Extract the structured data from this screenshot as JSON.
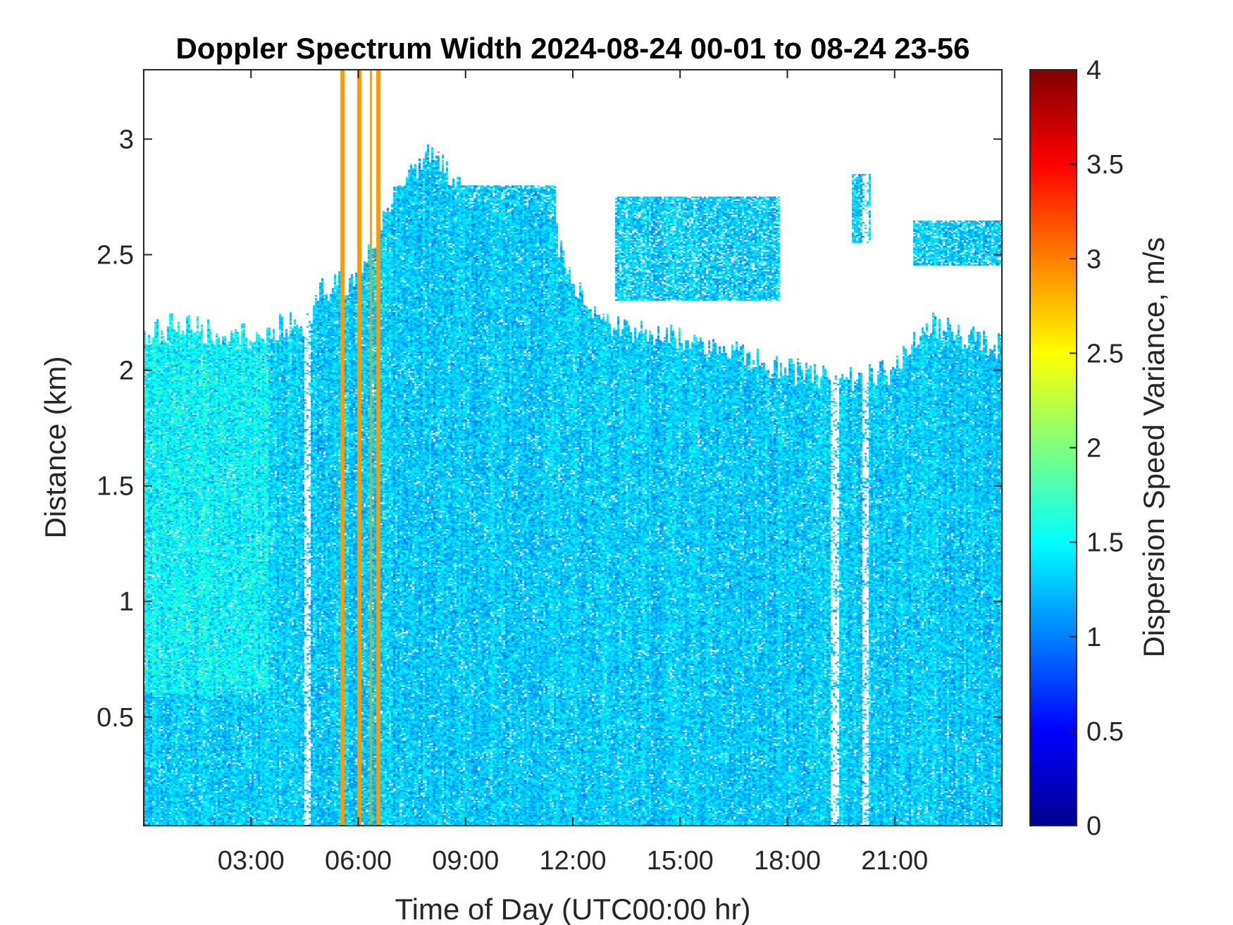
{
  "chart_data": {
    "type": "heatmap",
    "title": "Doppler Spectrum Width 2024-08-24 00-01 to 08-24 23-56",
    "xlabel": "Time of Day (UTC00:00 hr)",
    "ylabel": "Distance (km)",
    "colorbar_label": "Dispersion Speed Variance, m/s",
    "colormap": "jet",
    "x_unit": "hours",
    "xlim": [
      0.0,
      24.0
    ],
    "ylim": [
      0.03,
      3.3
    ],
    "clim": [
      0,
      4
    ],
    "xticks": [
      {
        "value": 3,
        "label": "03:00"
      },
      {
        "value": 6,
        "label": "06:00"
      },
      {
        "value": 9,
        "label": "09:00"
      },
      {
        "value": 12,
        "label": "12:00"
      },
      {
        "value": 15,
        "label": "15:00"
      },
      {
        "value": 18,
        "label": "18:00"
      },
      {
        "value": 21,
        "label": "21:00"
      }
    ],
    "yticks": [
      {
        "value": 0.5,
        "label": "0.5"
      },
      {
        "value": 1,
        "label": "1"
      },
      {
        "value": 1.5,
        "label": "1.5"
      },
      {
        "value": 2,
        "label": "2"
      },
      {
        "value": 2.5,
        "label": "2.5"
      },
      {
        "value": 3,
        "label": "3"
      }
    ],
    "cticks": [
      {
        "value": 0,
        "label": "0"
      },
      {
        "value": 0.5,
        "label": "0.5"
      },
      {
        "value": 1,
        "label": "1"
      },
      {
        "value": 1.5,
        "label": "1.5"
      },
      {
        "value": 2,
        "label": "2"
      },
      {
        "value": 2.5,
        "label": "2.5"
      },
      {
        "value": 3,
        "label": "3"
      },
      {
        "value": 3.5,
        "label": "3.5"
      },
      {
        "value": 4,
        "label": "4"
      }
    ],
    "typical_value": 1.3,
    "data_top_profile": [
      {
        "x": 0.0,
        "y": 2.15
      },
      {
        "x": 1.0,
        "y": 2.2
      },
      {
        "x": 2.0,
        "y": 2.15
      },
      {
        "x": 3.0,
        "y": 2.15
      },
      {
        "x": 4.0,
        "y": 2.2
      },
      {
        "x": 4.5,
        "y": 2.2
      },
      {
        "x": 5.0,
        "y": 2.35
      },
      {
        "x": 6.0,
        "y": 2.4
      },
      {
        "x": 6.8,
        "y": 2.7
      },
      {
        "x": 7.5,
        "y": 2.85
      },
      {
        "x": 8.0,
        "y": 2.95
      },
      {
        "x": 9.0,
        "y": 2.75
      },
      {
        "x": 10.0,
        "y": 2.7
      },
      {
        "x": 11.0,
        "y": 2.75
      },
      {
        "x": 11.5,
        "y": 2.6
      },
      {
        "x": 12.0,
        "y": 2.35
      },
      {
        "x": 13.0,
        "y": 2.2
      },
      {
        "x": 14.0,
        "y": 2.15
      },
      {
        "x": 15.0,
        "y": 2.15
      },
      {
        "x": 16.0,
        "y": 2.1
      },
      {
        "x": 17.0,
        "y": 2.05
      },
      {
        "x": 18.0,
        "y": 2.0
      },
      {
        "x": 19.0,
        "y": 1.98
      },
      {
        "x": 20.0,
        "y": 1.95
      },
      {
        "x": 21.0,
        "y": 2.0
      },
      {
        "x": 22.0,
        "y": 2.2
      },
      {
        "x": 23.0,
        "y": 2.15
      },
      {
        "x": 24.0,
        "y": 2.1
      }
    ],
    "upper_layers": [
      {
        "x_start": 7.0,
        "x_end": 11.5,
        "y_bottom": 2.45,
        "y_top": 2.8
      },
      {
        "x_start": 13.2,
        "x_end": 17.8,
        "y_bottom": 2.3,
        "y_top": 2.75
      },
      {
        "x_start": 19.8,
        "x_end": 20.3,
        "y_bottom": 2.55,
        "y_top": 2.85
      },
      {
        "x_start": 21.5,
        "x_end": 24.0,
        "y_bottom": 2.45,
        "y_top": 2.65
      }
    ],
    "high_variance_streaks": [
      {
        "x": 5.55,
        "value": 2.9
      },
      {
        "x": 6.0,
        "value": 2.9
      },
      {
        "x": 6.35,
        "value": 2.9
      },
      {
        "x": 6.55,
        "value": 2.9
      }
    ],
    "data_gaps": [
      {
        "x_start": 4.5,
        "x_end": 4.65
      },
      {
        "x_start": 19.2,
        "x_end": 19.45
      },
      {
        "x_start": 20.1,
        "x_end": 20.25
      }
    ]
  }
}
